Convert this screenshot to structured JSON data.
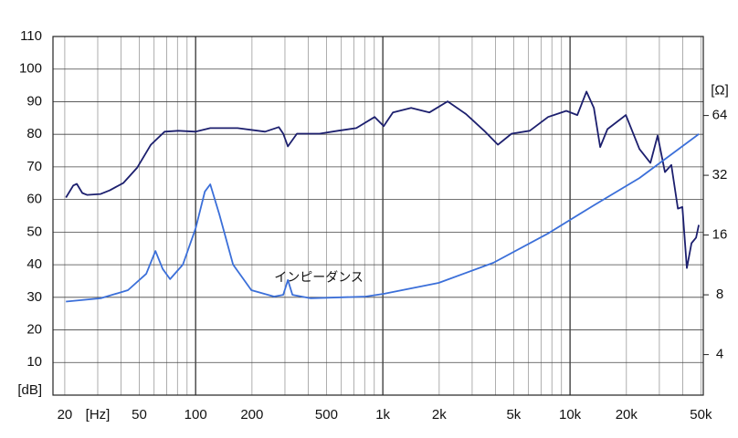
{
  "chart_data": {
    "type": "line",
    "x_scale": "log",
    "y2_scale": "log2",
    "xlim": [
      17.3,
      51500
    ],
    "ylim": [
      0,
      110
    ],
    "y2lim": [
      2.5,
      160
    ],
    "xticks": [
      20,
      50,
      100,
      200,
      500,
      {
        "value": 1000,
        "label": "1k"
      },
      {
        "value": 2000,
        "label": "2k"
      },
      {
        "value": 5000,
        "label": "5k"
      },
      {
        "value": 10000,
        "label": "10k"
      },
      {
        "value": 20000,
        "label": "20k"
      },
      {
        "value": 50000,
        "label": "50k"
      }
    ],
    "yticks": [
      10,
      20,
      30,
      40,
      50,
      60,
      70,
      80,
      90,
      100,
      110
    ],
    "y2ticks": [
      4,
      8,
      16,
      32,
      64
    ],
    "x_unit": "[Hz]",
    "x_unit_at": 30,
    "y_unit": "[dB]",
    "y2_unit": "[Ω]",
    "grid": true,
    "x_grid": [
      20,
      30,
      40,
      50,
      60,
      70,
      80,
      90,
      100,
      200,
      300,
      400,
      500,
      600,
      700,
      800,
      900,
      1000,
      2000,
      3000,
      4000,
      5000,
      6000,
      7000,
      8000,
      9000,
      10000,
      20000,
      30000,
      40000,
      50000
    ],
    "x_major_grid": [
      100,
      1000,
      10000
    ],
    "series": [
      {
        "color": "#1c1f6e",
        "x": [
          20.3,
          22.2,
          23.2,
          24.8,
          26.3,
          31.1,
          34.8,
          41.2,
          48.8,
          57.7,
          68.3,
          80.8,
          100,
          119.7,
          167.5,
          234.8,
          277.9,
          293.9,
          311,
          347.7,
          460,
          576,
          722,
          904,
          1011,
          1132,
          1416,
          1774,
          2220,
          2780,
          3478,
          4120,
          4875,
          6095,
          7636,
          9550,
          10940,
          12240,
          13400,
          14490,
          15850,
          19860,
          23490,
          26860,
          29380,
          32140,
          34750,
          37670,
          39810,
          42070,
          44570,
          47100,
          48750
        ],
        "values": [
          60.6,
          64.3,
          64.8,
          62.0,
          61.4,
          61.7,
          62.8,
          65.1,
          69.8,
          76.8,
          80.8,
          81.1,
          80.8,
          81.9,
          81.9,
          80.8,
          82.2,
          80.2,
          76.3,
          80.2,
          80.2,
          81.1,
          81.9,
          85.3,
          82.5,
          86.7,
          88.1,
          86.7,
          90.1,
          86.2,
          81.1,
          76.8,
          80.2,
          81.1,
          85.3,
          87.2,
          85.9,
          93.1,
          88.1,
          76.1,
          81.6,
          85.9,
          75.5,
          71.2,
          79.6,
          68.4,
          70.6,
          57.2,
          57.7,
          39.0,
          46.6,
          48.3,
          52.2
        ]
      },
      {
        "name": "インピーダンス",
        "color": "#3b6fd9",
        "axis": "y2",
        "x": [
          20.3,
          31.1,
          43.5,
          54.5,
          61.0,
          66.7,
          73.0,
          85.5,
          100,
          112,
          119.7,
          133.9,
          158.6,
          198.5,
          262.7,
          293.9,
          311,
          328.9,
          412,
          808,
          1011,
          1987,
          3893,
          7636,
          13400,
          23490,
          48750
        ],
        "values": [
          7.4,
          7.68,
          8.44,
          10.2,
          13.3,
          10.8,
          9.6,
          11.35,
          17.3,
          26.5,
          28.8,
          20.3,
          11.35,
          8.44,
          7.84,
          8.0,
          9.49,
          8.0,
          7.68,
          7.84,
          8.09,
          9.19,
          11.6,
          16.3,
          22.6,
          31.0,
          51.6
        ]
      }
    ]
  }
}
